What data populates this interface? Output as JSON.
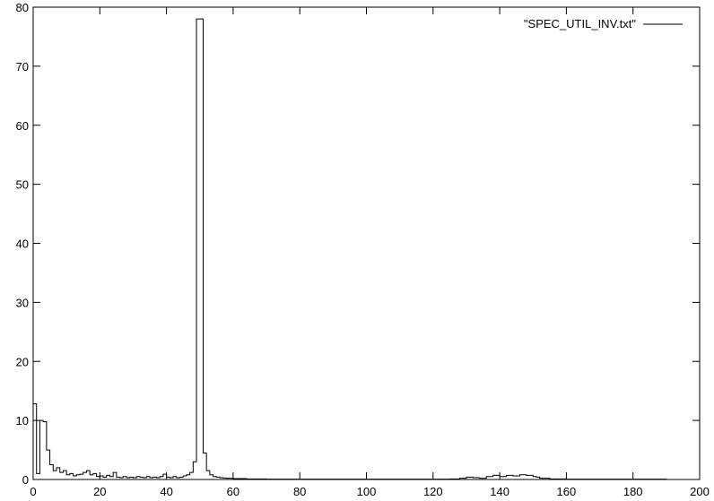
{
  "chart_data": {
    "type": "line",
    "style": "steps",
    "title": "",
    "xlabel": "",
    "ylabel": "",
    "xlim": [
      0,
      200
    ],
    "ylim": [
      0,
      80
    ],
    "xticks": [
      0,
      20,
      40,
      60,
      80,
      100,
      120,
      140,
      160,
      180,
      200
    ],
    "yticks": [
      0,
      10,
      20,
      30,
      40,
      50,
      60,
      70,
      80
    ],
    "grid": false,
    "legend_position": "top-right",
    "series": [
      {
        "name": "\"SPEC_UTIL_INV.txt\"",
        "color": "#000000",
        "x": [
          0,
          1,
          2,
          3,
          4,
          5,
          6,
          7,
          8,
          9,
          10,
          11,
          12,
          13,
          14,
          15,
          16,
          17,
          18,
          19,
          20,
          21,
          22,
          23,
          24,
          25,
          26,
          27,
          28,
          29,
          30,
          31,
          32,
          33,
          34,
          35,
          36,
          37,
          38,
          39,
          40,
          41,
          42,
          43,
          44,
          45,
          46,
          47,
          48,
          49,
          50,
          51,
          52,
          53,
          54,
          55,
          56,
          57,
          58,
          59,
          60,
          62,
          64,
          66,
          68,
          70,
          75,
          80,
          90,
          100,
          110,
          120,
          125,
          128,
          130,
          132,
          134,
          136,
          138,
          140,
          142,
          144,
          146,
          148,
          150,
          151,
          152,
          155,
          160,
          170,
          180,
          190,
          193
        ],
        "y": [
          12.8,
          1.0,
          10.0,
          9.8,
          5.0,
          2.5,
          1.5,
          2.0,
          1.2,
          1.5,
          0.8,
          1.0,
          0.6,
          0.8,
          0.9,
          1.2,
          1.5,
          0.8,
          1.0,
          0.5,
          0.6,
          0.4,
          0.7,
          0.5,
          1.2,
          0.4,
          0.3,
          0.5,
          0.3,
          0.4,
          0.3,
          0.5,
          0.4,
          0.3,
          0.5,
          0.3,
          0.4,
          0.3,
          0.5,
          0.9,
          0.4,
          0.3,
          0.5,
          0.3,
          0.4,
          0.6,
          0.8,
          1.2,
          3.0,
          78.0,
          78.0,
          4.5,
          1.5,
          0.8,
          0.5,
          0.4,
          0.3,
          0.25,
          0.2,
          0.2,
          0.15,
          0.15,
          0.1,
          0.1,
          0.1,
          0.05,
          0.05,
          0.05,
          0.05,
          0.05,
          0.05,
          0.05,
          0.1,
          0.2,
          0.4,
          0.3,
          0.2,
          0.5,
          0.7,
          0.5,
          0.7,
          0.6,
          0.8,
          0.7,
          0.5,
          0.4,
          0.2,
          0.1,
          0.05,
          0.05,
          0.05,
          0.0,
          0.0
        ]
      }
    ]
  }
}
